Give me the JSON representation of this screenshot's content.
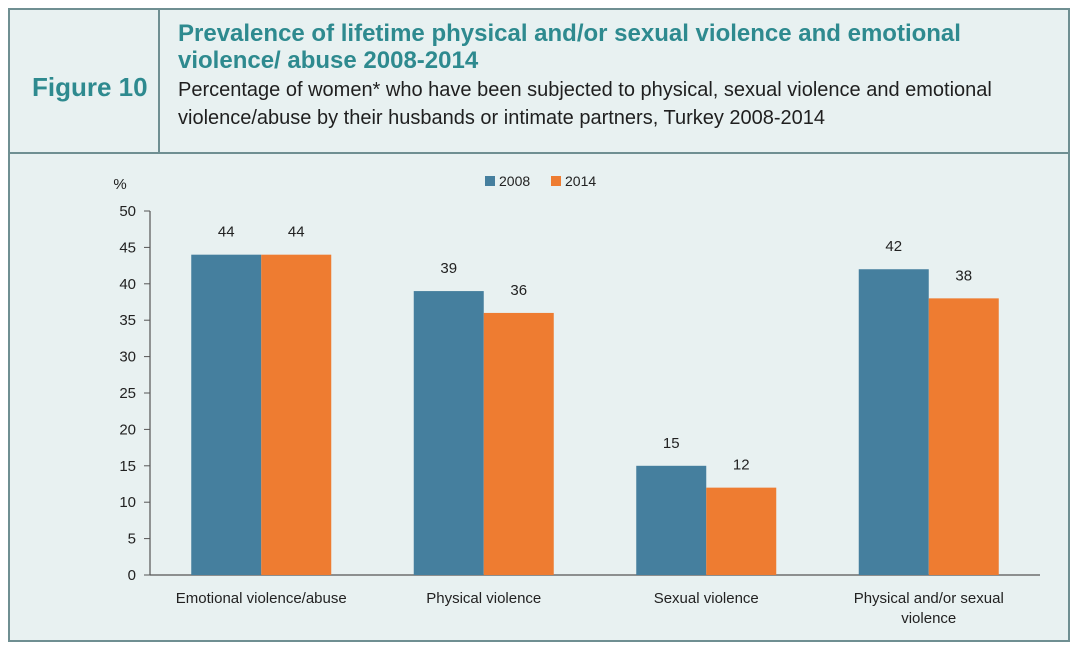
{
  "figure_label": "Figure 10",
  "title": "Prevalence of lifetime physical and/or sexual violence and emotional violence/ abuse 2008-2014",
  "subtitle": "Percentage of women* who have been subjected to physical, sexual violence and emotional violence/abuse by their husbands or intimate partners, Turkey 2008-2014",
  "chart_data": {
    "type": "bar",
    "ylabel": "%",
    "ylim": [
      0,
      50
    ],
    "yticks": [
      0,
      5,
      10,
      15,
      20,
      25,
      30,
      35,
      40,
      45,
      50
    ],
    "grid": false,
    "legend_position": "top-center",
    "categories": [
      "Emotional violence/abuse",
      "Physical violence",
      "Sexual violence",
      "Physical and/or sexual violence"
    ],
    "series": [
      {
        "name": "2008",
        "color": "#457f9e",
        "values": [
          44,
          39,
          15,
          42
        ]
      },
      {
        "name": "2014",
        "color": "#ee7c31",
        "values": [
          44,
          36,
          12,
          38
        ]
      }
    ]
  }
}
